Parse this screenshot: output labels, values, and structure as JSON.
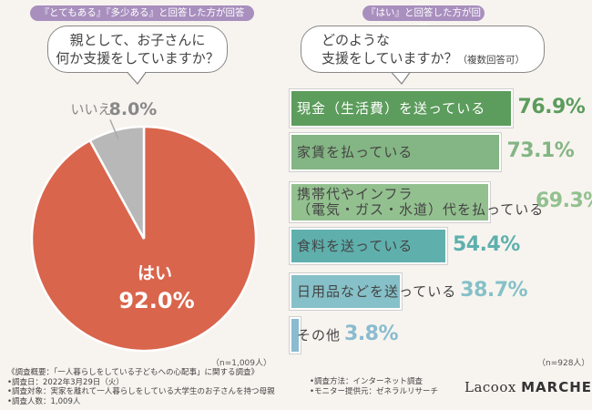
{
  "left_panel": {
    "tag": "『とてもある』『多少ある』と回答した方が回答",
    "question_lines": [
      "親として、お子さんに",
      "何か支援をしていますか？"
    ],
    "n_label": "（n=1,009人）"
  },
  "right_panel": {
    "tag": "『はい』と回答した方が回答",
    "question_line1": "どのような",
    "question_line2": "支援をしていますか？",
    "question_note": "（複数回答可）",
    "n_label": "（n=928人）"
  },
  "footer": {
    "summary": "《調査概要：「一人暮らしをしている子どもへの心配事」に関する調査》",
    "date": "•調査日：2022年3月29日（火）",
    "target": "•調査対象：実家を離れて一人暮らしをしている大学生のお子さんを持つ母親",
    "count": "•調査人数：1,009人",
    "method": "•調査方法：インターネット調査",
    "provider": "•モニター提供元：ゼネラルリサーチ"
  },
  "logo": {
    "script": "Lacoox",
    "bold": "MARCHE"
  },
  "colors": {
    "yes": "#d9654c",
    "no": "#b8b8b8",
    "bar1": "#5c9c5c",
    "bar2": "#84b584",
    "bar3": "#93c08f",
    "bar4": "#5fb0ad",
    "bar5": "#86c0c8",
    "bar6": "#8abbd0"
  },
  "chart_data": [
    {
      "type": "pie",
      "categories": [
        "はい",
        "いいえ"
      ],
      "values": [
        92.0,
        8.0
      ],
      "labels": [
        "はい",
        "いいえ"
      ],
      "value_labels": [
        "92.0%",
        "8.0%"
      ]
    },
    {
      "type": "bar",
      "orientation": "horizontal",
      "categories": [
        "現金（生活費）を送っている",
        "家賃を払っている",
        "携帯代やインフラ（電気・ガス・水道）代を払っている",
        "食料を送っている",
        "日用品などを送っている",
        "その他"
      ],
      "label_lines": [
        [
          "現金（生活費）を送っている"
        ],
        [
          "家賃を払っている"
        ],
        [
          "携帯代やインフラ",
          "（電気・ガス・水道）代を払っている"
        ],
        [
          "食料を送っている"
        ],
        [
          "日用品などを送っている"
        ],
        [
          "その他"
        ]
      ],
      "values": [
        76.9,
        73.1,
        69.3,
        54.4,
        38.7,
        3.8
      ],
      "value_labels": [
        "76.9%",
        "73.1%",
        "69.3%",
        "54.4%",
        "38.7%",
        "3.8%"
      ],
      "xlim": [
        0,
        100
      ]
    }
  ]
}
